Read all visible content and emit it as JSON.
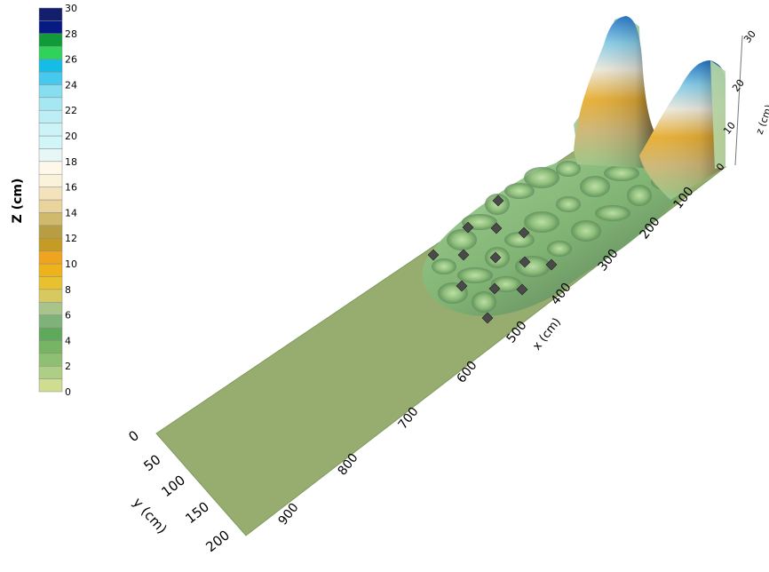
{
  "chart_data": {
    "type": "surface",
    "colorbar": {
      "title": "Z (cm)",
      "ticks": [
        0,
        2,
        4,
        6,
        8,
        10,
        12,
        14,
        16,
        18,
        20,
        22,
        24,
        26,
        28,
        30
      ],
      "range": [
        0,
        30
      ],
      "colors": [
        "#cfdd90",
        "#aecd86",
        "#8fbf72",
        "#77b464",
        "#5fa95a",
        "#7fb27a",
        "#a8c48a",
        "#d8c860",
        "#e8c22e",
        "#eeb21a",
        "#eea41e",
        "#c49b23",
        "#b89e42",
        "#cfba6c",
        "#ead49d",
        "#f3e2bc",
        "#fbf2dc",
        "#fdf8ea",
        "#e6f7f6",
        "#d2f5f7",
        "#ccf3f8",
        "#bdeef6",
        "#a6e7f2",
        "#86def0",
        "#45c9ee",
        "#14bde6",
        "#2fd35a",
        "#119a39",
        "#051a82",
        "#131f6c"
      ]
    },
    "x_axis": {
      "label": "x (cm)",
      "ticks": [
        100,
        200,
        300,
        400,
        500,
        600,
        700,
        800,
        900
      ]
    },
    "y_axis": {
      "label": "y (cm)",
      "ticks": [
        0,
        50,
        100,
        150,
        200
      ]
    },
    "z_axis": {
      "label": "z (cm)",
      "ticks": [
        0,
        10,
        20,
        30
      ]
    },
    "markers": {
      "count": 15,
      "color": "#4a4a4a"
    }
  }
}
